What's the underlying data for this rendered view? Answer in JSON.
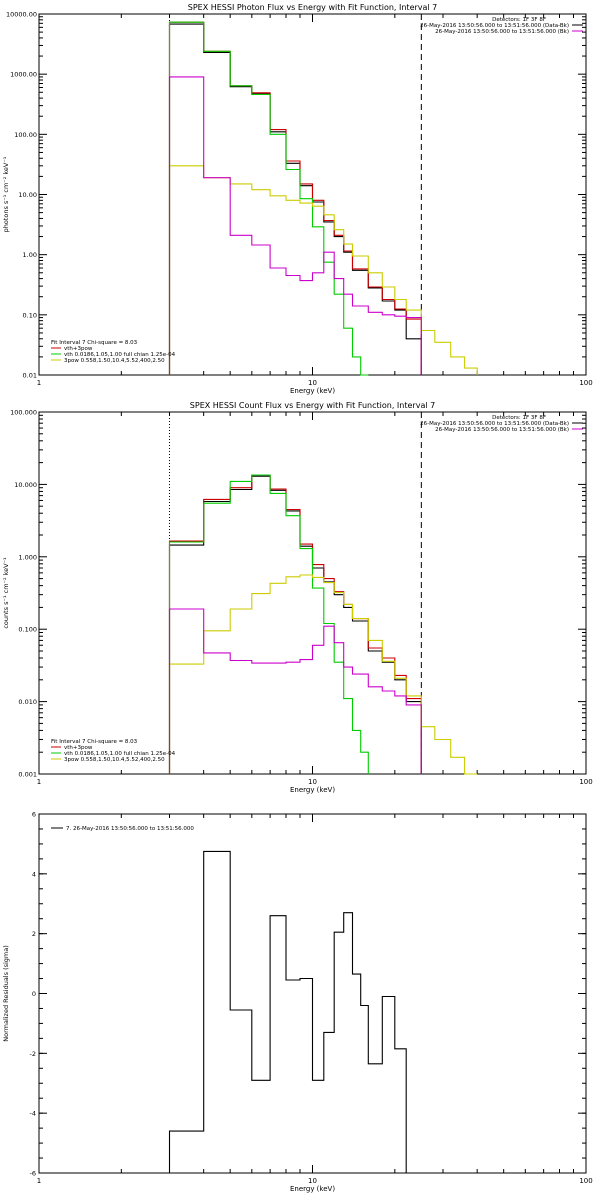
{
  "chart_data": [
    {
      "type": "line",
      "title": "SPEX HESSI Photon Flux vs Energy with Fit Function, Interval 7",
      "xlabel": "Energy (keV)",
      "ylabel": "photons s⁻¹ cm⁻² keV⁻¹",
      "xscale": "log",
      "yscale": "log",
      "xlim": [
        1,
        100
      ],
      "ylim": [
        0.01,
        10000
      ],
      "x_ticks": [
        "1",
        "10",
        "100"
      ],
      "y_ticks": [
        "0.01",
        "0.10",
        "1.00",
        "10.00",
        "100.00",
        "1000.00",
        "10000.00"
      ],
      "annotation_top": "Detectors: 1F 3F 8F",
      "legend_top": [
        {
          "label": "26-May-2016 13:50:56.000 to 13:51:56.000 (Data-Bk)",
          "color": "#000000"
        },
        {
          "label": "26-May-2016 13:50:56.000 to 13:51:56.000 (Bk)",
          "color": "#cc00cc"
        }
      ],
      "fit_text": "Fit Interval 7   Chi-square = 8.03",
      "legend_bottom": [
        {
          "label": "vth+3pow",
          "color": "#cc0000"
        },
        {
          "label": "vth 0.0186,1.05,1.00  full chian 1.25e-04",
          "color": "#00cc00"
        },
        {
          "label": "3pow 0.558,1.50,10.4,5.52,400,2.50",
          "color": "#cccc00"
        }
      ],
      "vlines": [
        {
          "x": 3,
          "style": "dotted"
        },
        {
          "x": 25,
          "style": "dashed"
        }
      ],
      "series": [
        {
          "name": "data",
          "color": "#000000",
          "edges": [
            3,
            4,
            5,
            6,
            7,
            8,
            9,
            10,
            11,
            12,
            13,
            14,
            16,
            18,
            20,
            22,
            25
          ],
          "values": [
            6800,
            2300,
            620,
            470,
            110,
            33,
            14,
            7.5,
            3.5,
            2,
            1.1,
            0.55,
            0.28,
            0.17,
            0.12,
            0.04
          ]
        },
        {
          "name": "vth+3pow",
          "color": "#cc0000",
          "edges": [
            3,
            4,
            5,
            6,
            7,
            8,
            9,
            10,
            11,
            12,
            13,
            14,
            16,
            18,
            20,
            22,
            25
          ],
          "values": [
            7300,
            2400,
            640,
            490,
            120,
            36,
            15,
            8,
            3.7,
            2.1,
            1.15,
            0.58,
            0.29,
            0.18,
            0.125,
            0.085
          ]
        },
        {
          "name": "vth",
          "color": "#00cc00",
          "edges": [
            3,
            4,
            5,
            6,
            7,
            8,
            9,
            10,
            11,
            12,
            13,
            14,
            15,
            16
          ],
          "values": [
            7300,
            2400,
            640,
            460,
            100,
            26,
            8.5,
            2.9,
            0.75,
            0.22,
            0.06,
            0.02,
            0.01
          ]
        },
        {
          "name": "3pow",
          "color": "#cccc00",
          "edges": [
            3,
            4,
            5,
            6,
            7,
            8,
            9,
            10,
            11,
            12,
            13,
            14,
            16,
            18,
            20,
            22,
            25,
            28,
            32,
            36,
            40
          ],
          "values": [
            30,
            19,
            15,
            12,
            9.5,
            8,
            7.2,
            6.4,
            4.6,
            2.6,
            1.5,
            0.95,
            0.5,
            0.29,
            0.18,
            0.12,
            0.055,
            0.035,
            0.02,
            0.013
          ]
        },
        {
          "name": "bk",
          "color": "#cc00cc",
          "edges": [
            3,
            4,
            5,
            6,
            7,
            8,
            9,
            10,
            11,
            12,
            13,
            14,
            16,
            18,
            20,
            22,
            25
          ],
          "values": [
            900,
            19,
            2.1,
            1.45,
            0.6,
            0.45,
            0.37,
            0.5,
            1.1,
            0.4,
            0.22,
            0.14,
            0.11,
            0.1,
            0.095,
            0.09
          ]
        }
      ]
    },
    {
      "type": "line",
      "title": "SPEX HESSI Count Flux vs Energy with Fit Function, Interval 7",
      "xlabel": "Energy (keV)",
      "ylabel": "counts s⁻¹ cm⁻² keV⁻¹",
      "xscale": "log",
      "yscale": "log",
      "xlim": [
        1,
        100
      ],
      "ylim": [
        0.001,
        100
      ],
      "x_ticks": [
        "1",
        "10",
        "100"
      ],
      "y_ticks": [
        "0.001",
        "0.010",
        "0.100",
        "1.000",
        "10.000",
        "100.000"
      ],
      "annotation_top": "Detectors: 1F 3F 8F",
      "legend_top": [
        {
          "label": "26-May-2016 13:50:56.000 to 13:51:56.000 (Data-Bk)",
          "color": "#000000"
        },
        {
          "label": "26-May-2016 13:50:56.000 to 13:51:56.000 (Bk)",
          "color": "#cc00cc"
        }
      ],
      "fit_text": "Fit Interval 7   Chi-square = 8.03",
      "legend_bottom": [
        {
          "label": "vth+3pow",
          "color": "#cc0000"
        },
        {
          "label": "vth 0.0186,1.05,1.00  full chian 1.25e-04",
          "color": "#00cc00"
        },
        {
          "label": "3pow 0.558,1.50,10.4,5.52,400,2.50",
          "color": "#cccc00"
        }
      ],
      "vlines": [
        {
          "x": 3,
          "style": "dotted"
        },
        {
          "x": 25,
          "style": "dashed"
        }
      ],
      "series": [
        {
          "name": "data",
          "color": "#000000",
          "edges": [
            3,
            4,
            5,
            6,
            7,
            8,
            9,
            10,
            11,
            12,
            13,
            14,
            16,
            18,
            20,
            22,
            25
          ],
          "values": [
            1.45,
            5.8,
            8.5,
            13,
            8.3,
            4.3,
            1.4,
            0.7,
            0.45,
            0.3,
            0.2,
            0.13,
            0.05,
            0.035,
            0.02,
            0.01
          ]
        },
        {
          "name": "vth+3pow",
          "color": "#cc0000",
          "edges": [
            3,
            4,
            5,
            6,
            7,
            8,
            9,
            10,
            11,
            12,
            13,
            14,
            16,
            18,
            20,
            22,
            25
          ],
          "values": [
            1.65,
            6.2,
            9,
            13.5,
            8.6,
            4.5,
            1.5,
            0.78,
            0.5,
            0.33,
            0.22,
            0.14,
            0.055,
            0.04,
            0.023,
            0.011
          ]
        },
        {
          "name": "vth",
          "color": "#00cc00",
          "edges": [
            3,
            4,
            5,
            6,
            7,
            8,
            9,
            10,
            11,
            12,
            13,
            14,
            15,
            16
          ],
          "values": [
            1.6,
            5.5,
            11,
            13.5,
            7.5,
            3.7,
            1.3,
            0.37,
            0.12,
            0.035,
            0.011,
            0.004,
            0.002
          ]
        },
        {
          "name": "3pow",
          "color": "#cccc00",
          "edges": [
            3,
            4,
            5,
            6,
            7,
            8,
            9,
            10,
            11,
            12,
            13,
            14,
            16,
            18,
            20,
            22,
            25,
            28,
            32,
            36,
            40
          ],
          "values": [
            0.033,
            0.095,
            0.19,
            0.31,
            0.43,
            0.53,
            0.56,
            0.52,
            0.44,
            0.32,
            0.22,
            0.14,
            0.07,
            0.036,
            0.021,
            0.012,
            0.0045,
            0.003,
            0.0017,
            0.001
          ]
        },
        {
          "name": "bk",
          "color": "#cc00cc",
          "edges": [
            3,
            4,
            5,
            6,
            7,
            8,
            9,
            10,
            11,
            12,
            13,
            14,
            16,
            18,
            20,
            22,
            25
          ],
          "values": [
            0.19,
            0.047,
            0.037,
            0.034,
            0.034,
            0.035,
            0.038,
            0.06,
            0.11,
            0.065,
            0.03,
            0.024,
            0.016,
            0.014,
            0.012,
            0.009
          ]
        }
      ]
    },
    {
      "type": "line",
      "title": "",
      "xlabel": "Energy (keV)",
      "ylabel": "Normalized Residuals (sigma)",
      "xscale": "log",
      "yscale": "linear",
      "xlim": [
        1,
        100
      ],
      "ylim": [
        -6,
        6
      ],
      "x_ticks": [
        "1",
        "10",
        "100"
      ],
      "y_ticks": [
        "-6",
        "-4",
        "-2",
        "0",
        "2",
        "4",
        "6"
      ],
      "legend_top": [
        {
          "label": "7. 26-May-2016 13:50:56.000 to 13:51:56.000",
          "color": "#000000"
        }
      ],
      "series": [
        {
          "name": "residuals",
          "color": "#000000",
          "edges": [
            3,
            4,
            5,
            6,
            7,
            8,
            9,
            10,
            11,
            12,
            13,
            14,
            15,
            16,
            18,
            20,
            22,
            25
          ],
          "values": [
            -4.6,
            4.75,
            -0.55,
            -2.9,
            2.6,
            0.45,
            0.5,
            -2.9,
            -1.3,
            2.05,
            2.7,
            0.65,
            -0.4,
            -2.35,
            -0.1,
            -1.85,
            -6
          ]
        }
      ]
    }
  ]
}
